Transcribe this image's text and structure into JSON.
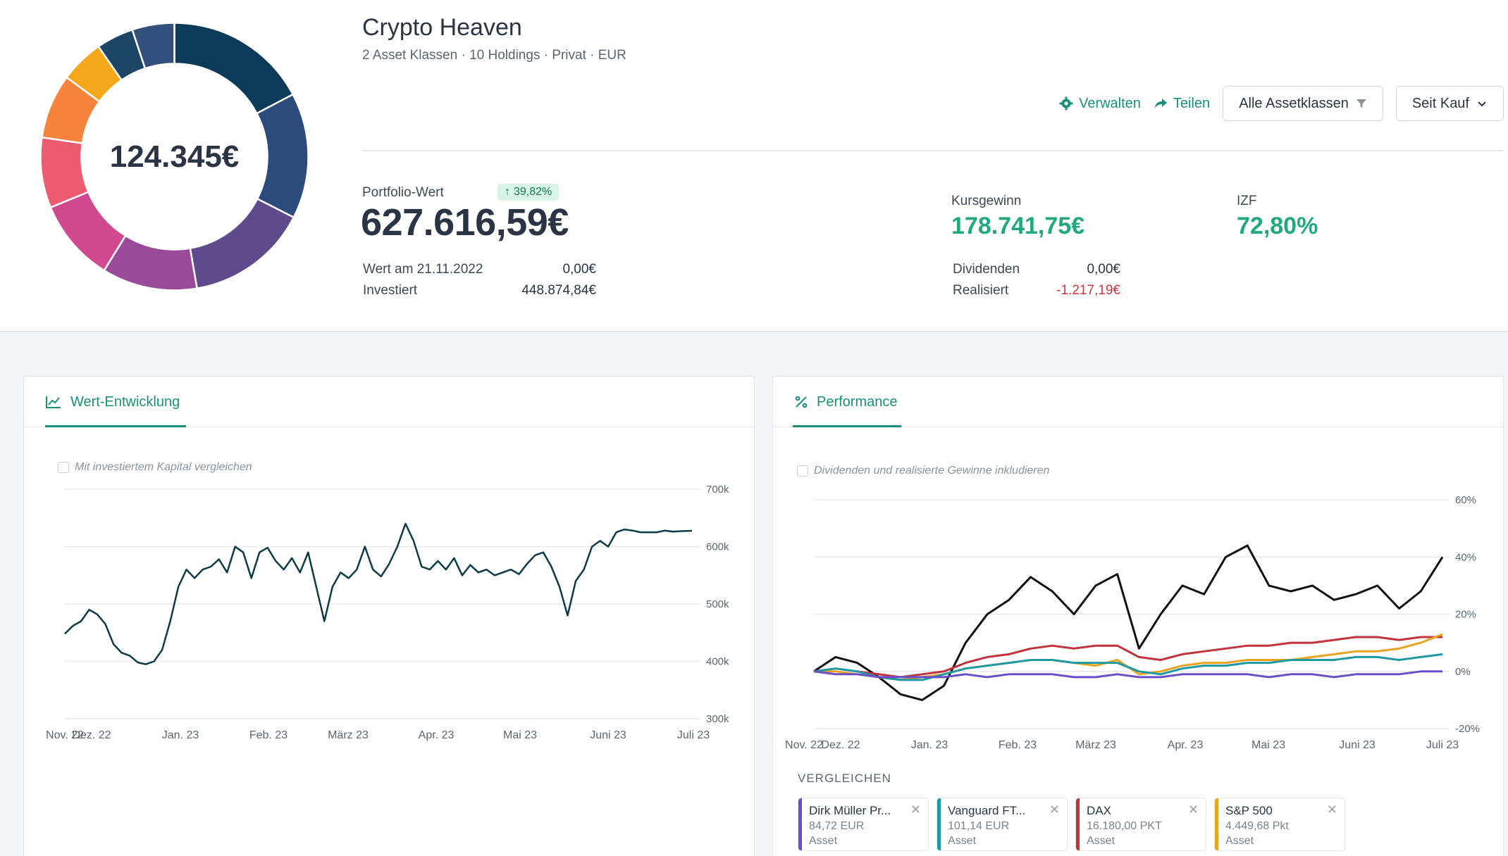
{
  "header": {
    "title": "Crypto Heaven",
    "subtitle": "2 Asset Klassen · 10 Holdings · Privat · EUR",
    "donut_total": "124.345€",
    "donut_colors": [
      "#0c3b59",
      "#2c4a7c",
      "#5f4b8b",
      "#9a4a99",
      "#d14a8f",
      "#ee5a6f",
      "#f7833c",
      "#f5a71a",
      "#1d4565",
      "#34507d"
    ],
    "donut_values": [
      17.3,
      15.2,
      14.8,
      11.5,
      10.0,
      8.5,
      7.8,
      5.3,
      4.5,
      5.1
    ]
  },
  "actions": {
    "manage": "Verwalten",
    "share": "Teilen",
    "asset_filter": "Alle Assetklassen",
    "period": "Seit Kauf"
  },
  "kpis": {
    "portfolio_label": "Portfolio-Wert",
    "portfolio_badge": "39,82%",
    "portfolio_value": "627.616,59€",
    "value_at_label": "Wert am 21.11.2022",
    "value_at": "0,00€",
    "invested_label": "Investiert",
    "invested": "448.874,84€",
    "gain_label": "Kursgewinn",
    "gain": "178.741,75€",
    "izf_label": "IZF",
    "izf": "72,80%",
    "dividends_label": "Dividenden",
    "dividends": "0,00€",
    "realized_label": "Realisiert",
    "realized": "-1.217,19€"
  },
  "value_card": {
    "tab": "Wert-Entwicklung",
    "checkbox": "Mit investiertem Kapital vergleichen"
  },
  "perf_card": {
    "tab": "Performance",
    "checkbox": "Dividenden und realisierte Gewinne inkludieren",
    "compare_title": "VERGLEICHEN",
    "compare": [
      {
        "name": "Dirk Müller Pr...",
        "value": "84,72 EUR",
        "type": "Asset",
        "color": "#6a4fc8"
      },
      {
        "name": "Vanguard FT...",
        "value": "101,14 EUR",
        "type": "Asset",
        "color": "#1f9aa3"
      },
      {
        "name": "DAX",
        "value": "16.180,00 PKT",
        "type": "Asset",
        "color": "#c3323b"
      },
      {
        "name": "S&P 500",
        "value": "4.449,68 Pkt",
        "type": "Asset",
        "color": "#e8a322"
      }
    ]
  },
  "chart_data": [
    {
      "type": "line",
      "title": "Wert-Entwicklung",
      "x_ticks": [
        "Nov. 22",
        "Dez. 22",
        "Jan. 23",
        "Feb. 23",
        "März 23",
        "Apr. 23",
        "Mai 23",
        "Juni 23",
        "Juli 23"
      ],
      "y_ticks": [
        "700k",
        "600k",
        "500k",
        "400k",
        "300k"
      ],
      "ylim": [
        300000,
        700000
      ],
      "x": [
        0,
        3,
        6,
        9,
        12,
        15,
        18,
        21,
        24,
        27,
        30,
        33,
        36,
        39,
        42,
        45,
        48,
        51,
        54,
        57,
        60,
        63,
        66,
        69,
        72,
        75,
        78,
        81,
        84,
        87,
        90,
        93,
        96,
        99,
        102,
        105,
        108,
        111,
        114,
        117,
        120,
        123,
        126,
        129,
        132,
        135,
        138,
        141,
        144,
        147,
        150,
        153,
        156,
        159,
        162,
        165,
        168,
        171,
        174,
        177,
        180,
        183,
        186,
        189,
        192,
        195,
        198,
        201,
        204,
        207,
        210,
        213,
        216,
        219,
        222,
        225,
        228,
        231,
        232
      ],
      "series": [
        {
          "name": "Portfolio",
          "color": "#0c3b4a",
          "values": [
            448000,
            462000,
            470000,
            490000,
            482000,
            465000,
            430000,
            415000,
            410000,
            398000,
            395000,
            400000,
            420000,
            470000,
            530000,
            560000,
            545000,
            560000,
            565000,
            578000,
            555000,
            600000,
            590000,
            545000,
            590000,
            598000,
            575000,
            560000,
            580000,
            555000,
            590000,
            530000,
            470000,
            530000,
            555000,
            545000,
            560000,
            600000,
            560000,
            548000,
            570000,
            600000,
            640000,
            610000,
            565000,
            560000,
            575000,
            560000,
            580000,
            550000,
            568000,
            555000,
            560000,
            550000,
            555000,
            560000,
            552000,
            570000,
            585000,
            590000,
            565000,
            530000,
            480000,
            540000,
            560000,
            600000,
            610000,
            600000,
            625000,
            630000,
            628000,
            625000,
            625000,
            625000,
            628000,
            626000,
            627000,
            627500,
            627616
          ]
        }
      ]
    },
    {
      "type": "line",
      "title": "Performance",
      "x_ticks": [
        "Nov. 22",
        "Dez. 22",
        "Jan. 23",
        "Feb. 23",
        "März 23",
        "Apr. 23",
        "Mai 23",
        "Juni 23",
        "Juli 23"
      ],
      "y_ticks": [
        "60%",
        "40%",
        "20%",
        "0%",
        "-20%"
      ],
      "ylim": [
        -20,
        60
      ],
      "x": [
        0,
        8,
        16,
        24,
        32,
        40,
        48,
        56,
        64,
        72,
        80,
        88,
        96,
        104,
        112,
        120,
        128,
        136,
        144,
        152,
        160,
        168,
        176,
        184,
        192,
        200,
        208,
        216,
        224,
        232
      ],
      "series": [
        {
          "name": "Portfolio",
          "color": "#111111",
          "values": [
            0,
            5,
            3,
            -2,
            -8,
            -10,
            -5,
            10,
            20,
            25,
            33,
            28,
            20,
            30,
            34,
            8,
            20,
            30,
            27,
            40,
            44,
            30,
            28,
            30,
            25,
            27,
            30,
            22,
            28,
            40
          ]
        },
        {
          "name": "DAX",
          "color": "#c3323b",
          "values": [
            0,
            1,
            0,
            -1,
            -2,
            -1,
            0,
            3,
            5,
            6,
            8,
            9,
            8,
            9,
            9,
            5,
            4,
            6,
            7,
            8,
            9,
            9,
            10,
            10,
            11,
            12,
            12,
            11,
            12,
            12
          ]
        },
        {
          "name": "S&P 500",
          "color": "#e8a322",
          "values": [
            0,
            0,
            -1,
            -2,
            -3,
            -2,
            -1,
            1,
            2,
            3,
            4,
            4,
            3,
            2,
            4,
            -1,
            0,
            2,
            3,
            3,
            4,
            4,
            4,
            5,
            6,
            7,
            7,
            8,
            10,
            13
          ]
        },
        {
          "name": "Vanguard FT...",
          "color": "#1f9aa3",
          "values": [
            0,
            1,
            0,
            -2,
            -3,
            -3,
            -1,
            1,
            2,
            3,
            4,
            4,
            3,
            3,
            3,
            0,
            -1,
            1,
            2,
            2,
            3,
            3,
            4,
            4,
            4,
            5,
            5,
            4,
            5,
            6
          ]
        },
        {
          "name": "Dirk Müller Pr...",
          "color": "#6a4fc8",
          "values": [
            0,
            -1,
            -1,
            -2,
            -2,
            -2,
            -2,
            -1,
            -2,
            -1,
            -1,
            -1,
            -2,
            -2,
            -1,
            -2,
            -2,
            -1,
            -1,
            -1,
            -1,
            -2,
            -1,
            -1,
            -2,
            -1,
            -1,
            -1,
            0,
            0
          ]
        }
      ]
    }
  ]
}
